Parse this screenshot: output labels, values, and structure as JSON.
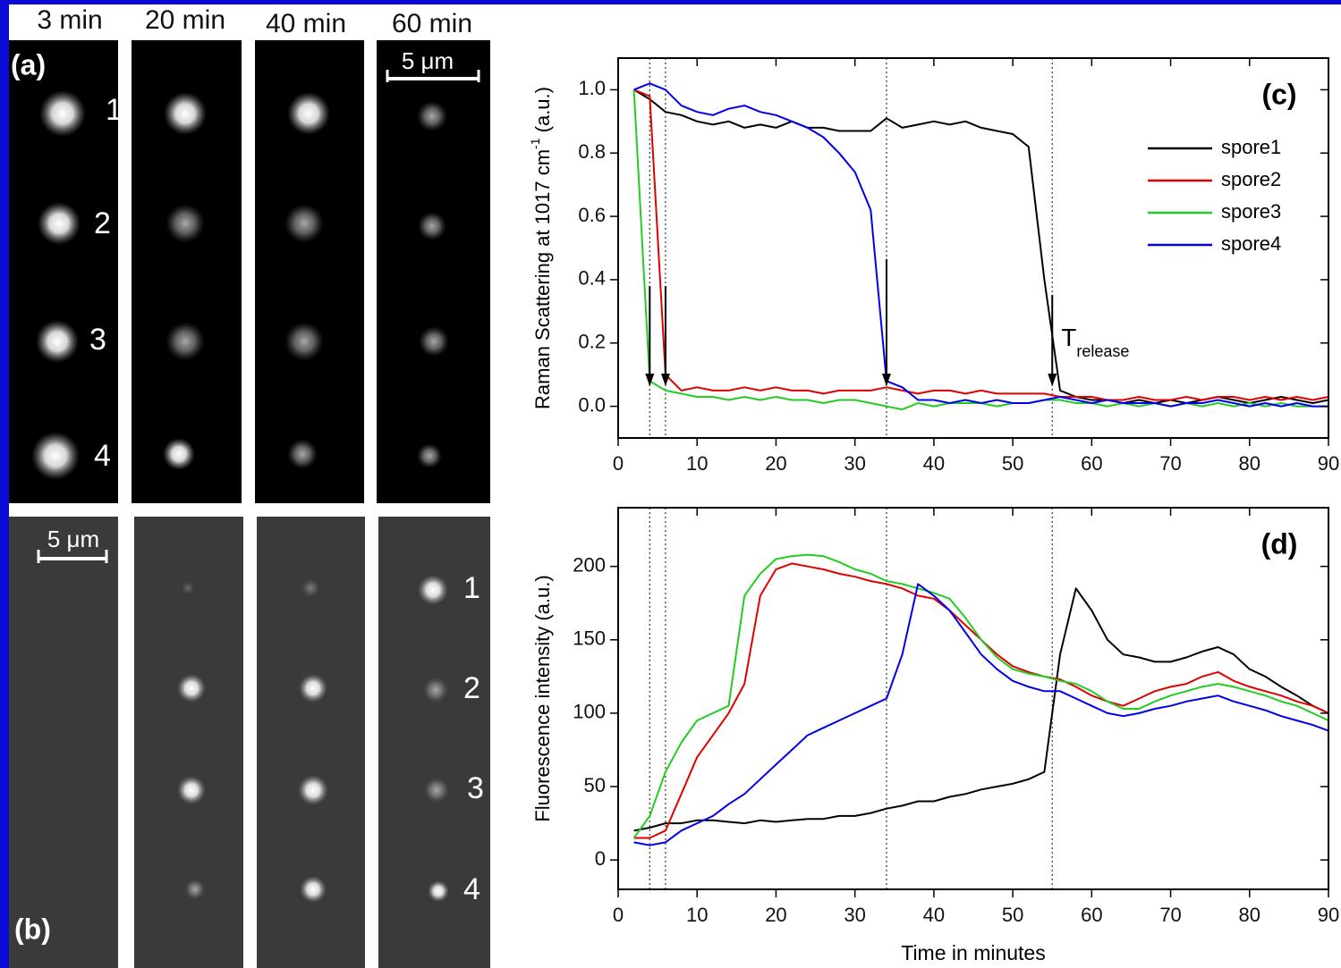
{
  "image_panels": {
    "time_labels": [
      "3 min",
      "20 min",
      "40 min",
      "60 min"
    ],
    "label_a": "(a)",
    "label_b": "(b)",
    "scale_bar_a": "5 μm",
    "scale_bar_b": "5 μm",
    "spot_numbers_a": [
      "1",
      "2",
      "3",
      "4"
    ],
    "spot_numbers_b": [
      "1",
      "2",
      "3",
      "4"
    ]
  },
  "chart_data": [
    {
      "type": "line",
      "panel_label": "(c)",
      "ylabel": "Raman Scattering at 1017 cm",
      "ylabel_superscript": "-1",
      "ylabel_suffix": " (a.u.)",
      "x": [
        2,
        4,
        6,
        8,
        10,
        12,
        14,
        16,
        18,
        20,
        22,
        24,
        26,
        28,
        30,
        32,
        34,
        36,
        38,
        40,
        42,
        44,
        46,
        48,
        50,
        52,
        54,
        56,
        58,
        60,
        62,
        64,
        66,
        68,
        70,
        72,
        74,
        76,
        78,
        80,
        82,
        84,
        86,
        88,
        90
      ],
      "series": [
        {
          "name": "spore1",
          "color": "#000000",
          "values": [
            1.0,
            0.97,
            0.93,
            0.92,
            0.9,
            0.89,
            0.9,
            0.88,
            0.89,
            0.88,
            0.9,
            0.88,
            0.88,
            0.87,
            0.87,
            0.87,
            0.91,
            0.88,
            0.89,
            0.9,
            0.89,
            0.9,
            0.88,
            0.87,
            0.86,
            0.82,
            0.4,
            0.05,
            0.03,
            0.02,
            0.02,
            0.01,
            0.02,
            0.01,
            0.02,
            0.01,
            0.02,
            0.03,
            0.02,
            0.01,
            0.02,
            0.03,
            0.02,
            0.01,
            0.02
          ]
        },
        {
          "name": "spore2",
          "color": "#e00000",
          "values": [
            1.0,
            0.98,
            0.1,
            0.05,
            0.06,
            0.05,
            0.05,
            0.06,
            0.05,
            0.06,
            0.05,
            0.05,
            0.04,
            0.05,
            0.05,
            0.05,
            0.06,
            0.05,
            0.04,
            0.05,
            0.05,
            0.04,
            0.05,
            0.04,
            0.04,
            0.04,
            0.04,
            0.03,
            0.03,
            0.03,
            0.02,
            0.02,
            0.03,
            0.02,
            0.02,
            0.03,
            0.02,
            0.03,
            0.03,
            0.02,
            0.03,
            0.02,
            0.03,
            0.02,
            0.03
          ]
        },
        {
          "name": "spore3",
          "color": "#22cc22",
          "values": [
            1.0,
            0.08,
            0.05,
            0.04,
            0.03,
            0.03,
            0.02,
            0.03,
            0.02,
            0.03,
            0.02,
            0.02,
            0.01,
            0.02,
            0.02,
            0.01,
            0.0,
            -0.01,
            0.01,
            0.0,
            0.01,
            0.01,
            0.01,
            0.0,
            0.01,
            0.01,
            0.02,
            0.02,
            0.01,
            0.01,
            0.0,
            0.01,
            0.0,
            0.01,
            0.0,
            0.01,
            0.0,
            0.01,
            0.0,
            0.01,
            0.0,
            0.01,
            0.0,
            0.0,
            0.0
          ]
        },
        {
          "name": "spore4",
          "color": "#0000ee",
          "values": [
            1.0,
            1.02,
            1.0,
            0.95,
            0.93,
            0.92,
            0.94,
            0.95,
            0.93,
            0.92,
            0.9,
            0.88,
            0.85,
            0.8,
            0.74,
            0.62,
            0.08,
            0.06,
            0.02,
            0.02,
            0.01,
            0.02,
            0.01,
            0.02,
            0.01,
            0.01,
            0.02,
            0.03,
            0.02,
            0.01,
            0.02,
            0.01,
            0.01,
            0.01,
            0.0,
            0.01,
            0.01,
            0.02,
            0.01,
            0.0,
            0.01,
            0.0,
            0.01,
            0.0,
            0.0
          ]
        }
      ],
      "xlim": [
        0,
        90
      ],
      "xticks": [
        0,
        10,
        20,
        30,
        40,
        50,
        60,
        70,
        80,
        90
      ],
      "ylim": [
        -0.1,
        1.1
      ],
      "yticks": [
        {
          "value": 0,
          "label": "0.0"
        },
        {
          "value": 0.2,
          "label": "0.2"
        },
        {
          "value": 0.4,
          "label": "0.4"
        },
        {
          "value": 0.6,
          "label": "0.6"
        },
        {
          "value": 0.8,
          "label": "0.8"
        },
        {
          "value": 1,
          "label": "1.0"
        }
      ],
      "vlines": [
        4,
        6,
        34,
        55
      ],
      "arrows_x": [
        4,
        6,
        34,
        55
      ],
      "annotation": "T",
      "annotation_subscript": "release",
      "legend": "upper right"
    },
    {
      "type": "line",
      "panel_label": "(d)",
      "ylabel": "Fluorescence intensity (a.u.)",
      "xlabel": "Time in minutes",
      "x": [
        2,
        4,
        6,
        8,
        10,
        12,
        14,
        16,
        18,
        20,
        22,
        24,
        26,
        28,
        30,
        32,
        34,
        36,
        38,
        40,
        42,
        44,
        46,
        48,
        50,
        52,
        54,
        56,
        58,
        60,
        62,
        64,
        66,
        68,
        70,
        72,
        74,
        76,
        78,
        80,
        82,
        84,
        86,
        88,
        90
      ],
      "series": [
        {
          "color": "#000000",
          "values": [
            20,
            22,
            25,
            25,
            27,
            27,
            26,
            25,
            27,
            26,
            27,
            28,
            28,
            30,
            30,
            32,
            35,
            37,
            40,
            40,
            43,
            45,
            48,
            50,
            52,
            55,
            60,
            140,
            185,
            170,
            150,
            140,
            138,
            135,
            135,
            138,
            142,
            145,
            140,
            130,
            125,
            118,
            112,
            105,
            100
          ]
        },
        {
          "color": "#e00000",
          "values": [
            15,
            15,
            20,
            45,
            70,
            85,
            100,
            120,
            180,
            198,
            202,
            200,
            198,
            195,
            193,
            190,
            188,
            185,
            180,
            178,
            170,
            160,
            150,
            140,
            132,
            128,
            125,
            123,
            118,
            112,
            108,
            105,
            110,
            115,
            118,
            120,
            125,
            128,
            122,
            118,
            115,
            112,
            108,
            105,
            100
          ]
        },
        {
          "color": "#22cc22",
          "values": [
            15,
            30,
            60,
            80,
            95,
            100,
            105,
            180,
            195,
            205,
            207,
            208,
            207,
            203,
            198,
            195,
            190,
            188,
            185,
            182,
            178,
            165,
            150,
            138,
            130,
            127,
            125,
            122,
            120,
            115,
            108,
            103,
            103,
            108,
            112,
            115,
            118,
            120,
            118,
            115,
            112,
            108,
            105,
            100,
            95
          ]
        },
        {
          "color": "#0000ee",
          "values": [
            12,
            10,
            12,
            20,
            25,
            30,
            38,
            45,
            55,
            65,
            75,
            85,
            90,
            95,
            100,
            105,
            110,
            140,
            188,
            180,
            170,
            155,
            140,
            130,
            122,
            118,
            115,
            115,
            110,
            105,
            100,
            98,
            100,
            103,
            105,
            108,
            110,
            112,
            108,
            105,
            102,
            98,
            95,
            92,
            88
          ]
        }
      ],
      "xlim": [
        0,
        90
      ],
      "xticks": [
        0,
        10,
        20,
        30,
        40,
        50,
        60,
        70,
        80,
        90
      ],
      "ylim": [
        -20,
        240
      ],
      "yticks": [
        0,
        50,
        100,
        150,
        200
      ],
      "vlines": [
        4,
        6,
        34,
        55
      ]
    }
  ]
}
